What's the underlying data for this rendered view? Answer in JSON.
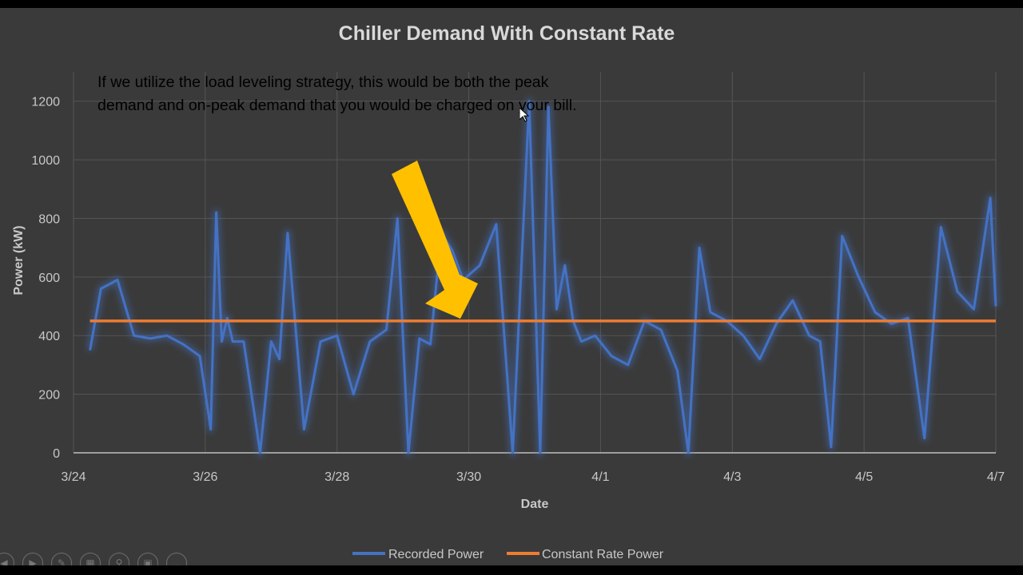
{
  "chart_data": {
    "type": "line",
    "title": "Chiller Demand With Constant Rate",
    "xlabel": "Date",
    "ylabel": "Power (kW)",
    "x_ticks": [
      "3/24",
      "3/26",
      "3/28",
      "3/30",
      "4/1",
      "4/3",
      "4/5",
      "4/7"
    ],
    "y_ticks": [
      0,
      200,
      400,
      600,
      800,
      1000,
      1200
    ],
    "xlim": [
      "2020-03-24",
      "2020-04-07"
    ],
    "ylim": [
      0,
      1300
    ],
    "grid": true,
    "legend_position": "bottom",
    "series": [
      {
        "name": "Recorded Power",
        "color": "#4472c4",
        "x": [
          "2020-03-24T06:00",
          "2020-03-24T10:00",
          "2020-03-24T16:00",
          "2020-03-24T22:00",
          "2020-03-25T04:00",
          "2020-03-25T10:00",
          "2020-03-25T16:00",
          "2020-03-25T22:00",
          "2020-03-26T02:00",
          "2020-03-26T04:00",
          "2020-03-26T06:00",
          "2020-03-26T08:00",
          "2020-03-26T10:00",
          "2020-03-26T14:00",
          "2020-03-26T20:00",
          "2020-03-27T00:00",
          "2020-03-27T03:00",
          "2020-03-27T06:00",
          "2020-03-27T12:00",
          "2020-03-27T18:00",
          "2020-03-28T00:00",
          "2020-03-28T06:00",
          "2020-03-28T12:00",
          "2020-03-28T18:00",
          "2020-03-28T22:00",
          "2020-03-29T02:00",
          "2020-03-29T06:00",
          "2020-03-29T10:00",
          "2020-03-29T14:00",
          "2020-03-29T18:00",
          "2020-03-29T22:00",
          "2020-03-30T04:00",
          "2020-03-30T10:00",
          "2020-03-30T16:00",
          "2020-03-30T22:00",
          "2020-03-31T02:00",
          "2020-03-31T05:00",
          "2020-03-31T08:00",
          "2020-03-31T11:00",
          "2020-03-31T14:00",
          "2020-03-31T17:00",
          "2020-03-31T22:00",
          "2020-04-01T04:00",
          "2020-04-01T10:00",
          "2020-04-01T16:00",
          "2020-04-01T22:00",
          "2020-04-02T04:00",
          "2020-04-02T08:00",
          "2020-04-02T12:00",
          "2020-04-02T16:00",
          "2020-04-02T22:00",
          "2020-04-03T04:00",
          "2020-04-03T10:00",
          "2020-04-03T16:00",
          "2020-04-03T22:00",
          "2020-04-04T04:00",
          "2020-04-04T08:00",
          "2020-04-04T12:00",
          "2020-04-04T16:00",
          "2020-04-04T22:00",
          "2020-04-05T04:00",
          "2020-04-05T10:00",
          "2020-04-05T16:00",
          "2020-04-05T22:00",
          "2020-04-06T04:00",
          "2020-04-06T10:00",
          "2020-04-06T16:00",
          "2020-04-06T22:00",
          "2020-04-07T00:00"
        ],
        "y": [
          350,
          560,
          590,
          400,
          390,
          400,
          370,
          330,
          80,
          820,
          380,
          460,
          380,
          380,
          0,
          380,
          320,
          750,
          80,
          380,
          400,
          200,
          380,
          420,
          800,
          0,
          390,
          370,
          750,
          690,
          590,
          640,
          780,
          0,
          1200,
          0,
          1180,
          490,
          640,
          450,
          380,
          400,
          330,
          300,
          450,
          420,
          280,
          0,
          700,
          480,
          450,
          400,
          320,
          440,
          520,
          400,
          380,
          20,
          740,
          600,
          480,
          440,
          460,
          50,
          770,
          550,
          490,
          870,
          500
        ]
      },
      {
        "name": "Constant Rate Power",
        "color": "#ed7d31",
        "x": [
          "2020-03-24T06:00",
          "2020-04-07T00:00"
        ],
        "y": [
          450,
          450
        ]
      }
    ],
    "annotations": [
      "If we utilize the load leveling strategy, this would be both the peak demand and on-peak demand that you would be charged on your bill."
    ]
  },
  "legend": {
    "recorded_label": "Recorded Power",
    "constant_label": "Constant Rate Power"
  },
  "toolbar": {
    "icons": [
      "back-icon",
      "play-icon",
      "pen-icon",
      "slides-icon",
      "zoom-icon",
      "subtitle-icon",
      "more-icon"
    ]
  }
}
